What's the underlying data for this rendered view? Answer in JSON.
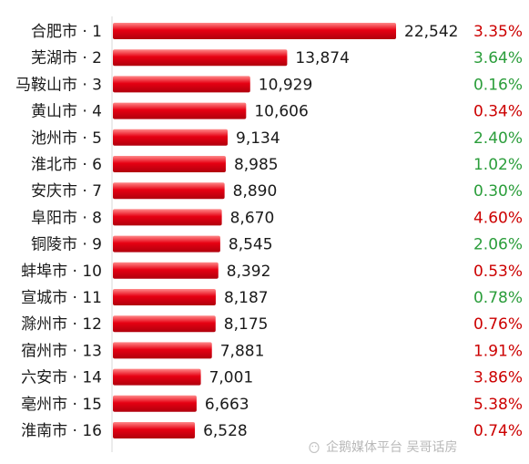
{
  "chart_data": {
    "type": "bar",
    "orientation": "horizontal",
    "categories": [
      "合肥市 · 1",
      "芜湖市 · 2",
      "马鞍山市 · 3",
      "黄山市 · 4",
      "池州市 · 5",
      "淮北市 · 6",
      "安庆市 · 7",
      "阜阳市 · 8",
      "铜陵市 · 9",
      "蚌埠市 · 10",
      "宣城市 · 11",
      "滁州市 · 12",
      "宿州市 · 13",
      "六安市 · 14",
      "亳州市 · 15",
      "淮南市 · 16"
    ],
    "values": [
      22542,
      13874,
      10929,
      10606,
      9134,
      8985,
      8890,
      8670,
      8545,
      8392,
      8187,
      8175,
      7881,
      7001,
      6663,
      6528
    ],
    "value_labels": [
      "22,542",
      "13,874",
      "10,929",
      "10,606",
      "9,134",
      "8,985",
      "8,890",
      "8,670",
      "8,545",
      "8,392",
      "8,187",
      "8,175",
      "7,881",
      "7,001",
      "6,663",
      "6,528"
    ],
    "changes": [
      "3.35%",
      "3.64%",
      "0.16%",
      "0.34%",
      "2.40%",
      "1.02%",
      "0.30%",
      "4.60%",
      "2.06%",
      "0.53%",
      "0.78%",
      "0.76%",
      "1.91%",
      "3.86%",
      "5.38%",
      "0.74%"
    ],
    "change_colors": [
      "#cc0000",
      "#2a9d3a",
      "#2a9d3a",
      "#cc0000",
      "#2a9d3a",
      "#2a9d3a",
      "#2a9d3a",
      "#cc0000",
      "#2a9d3a",
      "#cc0000",
      "#2a9d3a",
      "#cc0000",
      "#cc0000",
      "#cc0000",
      "#cc0000",
      "#cc0000"
    ],
    "bar_color": "#e60012",
    "xlim": [
      0,
      22542
    ],
    "grid": false,
    "title": "",
    "xlabel": "",
    "ylabel": ""
  },
  "watermark": {
    "text": "企鹅媒体平台 吴哥话房"
  }
}
